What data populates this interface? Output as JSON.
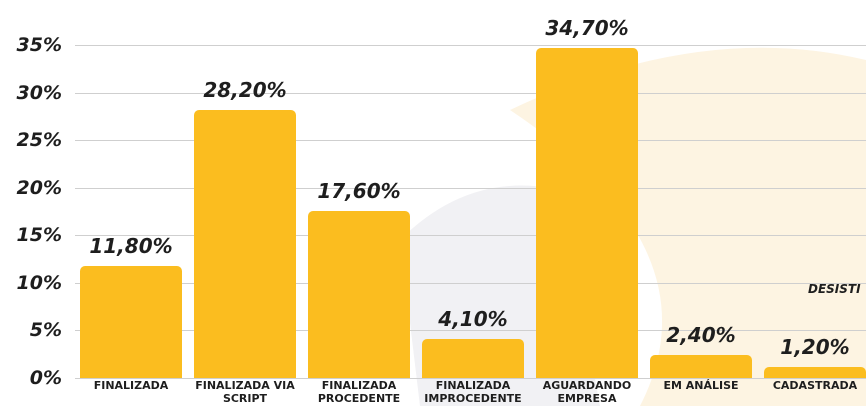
{
  "chart_data": {
    "type": "bar",
    "categories": [
      "FINALIZADA",
      "FINALIZADA VIA SCRIPT",
      "FINALIZADA PROCEDENTE",
      "FINALIZADA IMPROCEDENTE",
      "AGUARDANDO EMPRESA",
      "EM ANÁLISE",
      "CADASTRADA"
    ],
    "values": [
      11.8,
      28.2,
      17.6,
      4.1,
      34.7,
      2.4,
      1.2
    ],
    "value_labels": [
      "11,80%",
      "28,20%",
      "17,60%",
      "4,10%",
      "34,70%",
      "2,40%",
      "1,20%"
    ],
    "color": "#fbbd1f",
    "ylim": [
      0,
      35
    ],
    "yticks": [
      {
        "value": 0,
        "label": "0%"
      },
      {
        "value": 5,
        "label": "5%"
      },
      {
        "value": 10,
        "label": "10%"
      },
      {
        "value": 15,
        "label": "15%"
      },
      {
        "value": 20,
        "label": "20%"
      },
      {
        "value": 25,
        "label": "25%"
      },
      {
        "value": 30,
        "label": "30%"
      },
      {
        "value": 35,
        "label": "35%"
      }
    ],
    "grid": true,
    "annotations": [
      "DESISTI"
    ]
  }
}
